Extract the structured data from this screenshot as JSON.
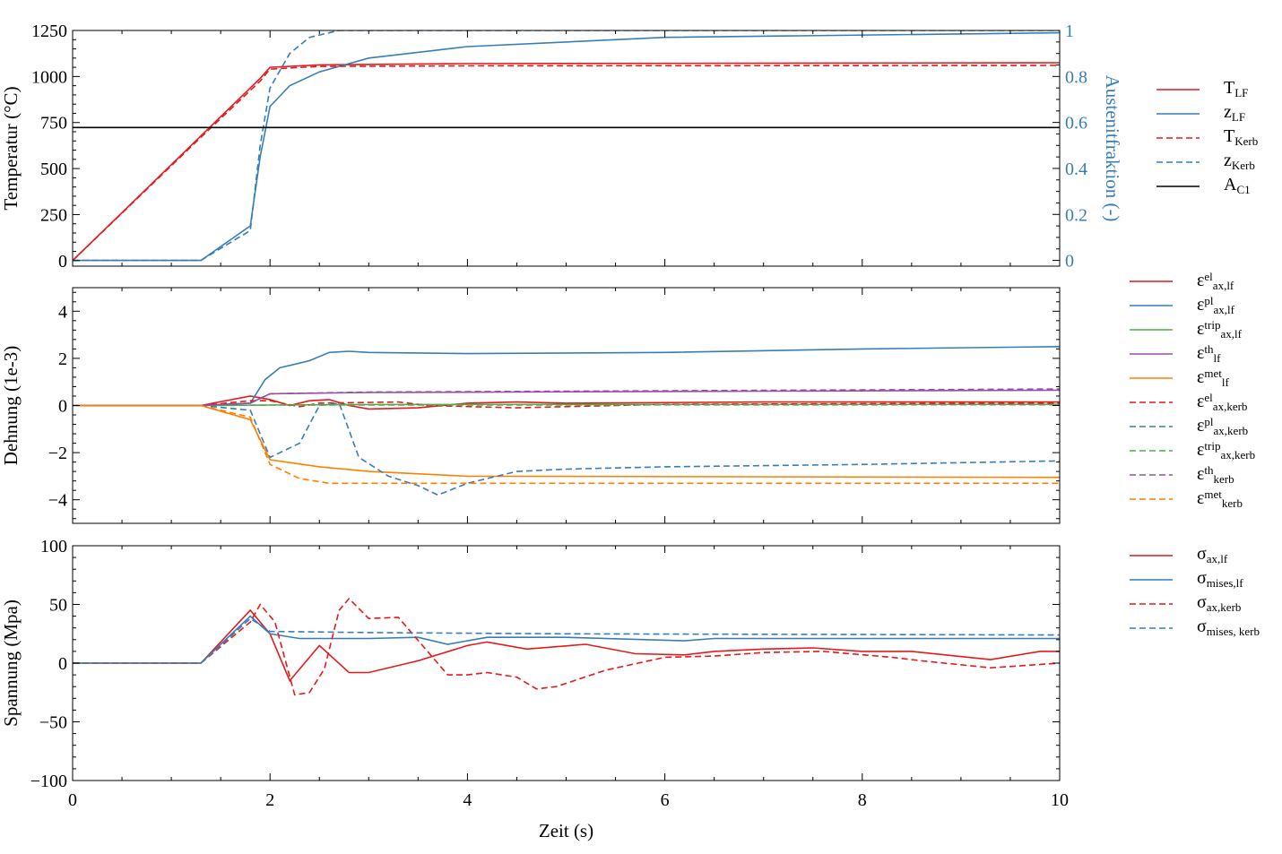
{
  "chart_data": [
    {
      "type": "line",
      "ylabel": "Temperatur (°C)",
      "y2label": "Austenitfraktion (-)",
      "xlim": [
        0,
        10
      ],
      "ylim": [
        -30,
        1250
      ],
      "y2lim": [
        -0.025,
        1
      ],
      "xticks": [
        "0",
        "2",
        "4",
        "6",
        "8",
        "10"
      ],
      "yticks": [
        "0",
        "250",
        "500",
        "750",
        "1000",
        "1250"
      ],
      "y2ticks": [
        "0",
        "0.2",
        "0.4",
        "0.6",
        "0.8",
        "1"
      ],
      "grid": false,
      "legend_placement": "right-outside",
      "series": [
        {
          "name": "T_LF",
          "label": {
            "b": "T",
            "sub": "LF",
            "sup": ""
          },
          "color": "#e41a1c",
          "dash": false,
          "axis": "left",
          "x": [
            0,
            1.3,
            1.9,
            2.0,
            2.5,
            4,
            10
          ],
          "y": [
            0,
            677,
            990,
            1050,
            1063,
            1070,
            1075
          ]
        },
        {
          "name": "z_LF",
          "label": {
            "b": "z",
            "sub": "LF",
            "sup": ""
          },
          "color": "#377eb8",
          "dash": false,
          "axis": "right",
          "x": [
            0,
            1.3,
            1.8,
            1.9,
            2.0,
            2.2,
            2.5,
            3,
            4,
            6,
            10
          ],
          "y": [
            0,
            0,
            0.15,
            0.45,
            0.67,
            0.76,
            0.82,
            0.88,
            0.93,
            0.97,
            0.99
          ]
        },
        {
          "name": "T_Kerb",
          "label": {
            "b": "T",
            "sub": "Kerb",
            "sup": ""
          },
          "color": "#e41a1c",
          "dash": true,
          "axis": "left",
          "x": [
            0,
            1.3,
            1.9,
            2.0,
            2.5,
            4,
            10
          ],
          "y": [
            0,
            670,
            975,
            1040,
            1055,
            1058,
            1060
          ]
        },
        {
          "name": "z_Kerb",
          "label": {
            "b": "z",
            "sub": "Kerb",
            "sup": ""
          },
          "color": "#377eb8",
          "dash": true,
          "axis": "right",
          "x": [
            0,
            1.3,
            1.8,
            1.9,
            2.0,
            2.2,
            2.4,
            2.7,
            10
          ],
          "y": [
            0,
            0,
            0.13,
            0.5,
            0.75,
            0.9,
            0.97,
            1.0,
            1.0
          ]
        },
        {
          "name": "A_C1",
          "label": {
            "b": "A",
            "sub": "C1",
            "sup": ""
          },
          "color": "#000000",
          "dash": false,
          "axis": "left",
          "x": [
            0,
            10
          ],
          "y": [
            723,
            723
          ]
        }
      ]
    },
    {
      "type": "line",
      "ylabel": "Dehnung (1e-3)",
      "xlim": [
        0,
        10
      ],
      "ylim": [
        -5,
        5
      ],
      "xticks": [
        "0",
        "2",
        "4",
        "6",
        "8",
        "10"
      ],
      "yticks": [
        "−4",
        "−2",
        "0",
        "2",
        "4"
      ],
      "ytick_values": [
        -4,
        -2,
        0,
        2,
        4
      ],
      "grid": false,
      "legend_placement": "right-outside",
      "series": [
        {
          "name": "eps_el_ax_lf",
          "label": {
            "b": "ε",
            "sub": "ax,lf",
            "sup": "el"
          },
          "color": "#e41a1c",
          "dash": false,
          "x": [
            0,
            1.3,
            1.8,
            2.0,
            2.2,
            2.4,
            2.6,
            2.8,
            3.0,
            3.5,
            4,
            4.5,
            5,
            7,
            10
          ],
          "y": [
            0,
            0,
            0.4,
            0.25,
            0,
            0.2,
            0.25,
            0,
            -0.15,
            -0.1,
            0.1,
            0.15,
            0.1,
            0.15,
            0.15
          ]
        },
        {
          "name": "eps_pl_ax_lf",
          "label": {
            "b": "ε",
            "sub": "ax,lf",
            "sup": "pl"
          },
          "color": "#377eb8",
          "dash": false,
          "x": [
            0,
            1.3,
            1.8,
            1.95,
            2.1,
            2.3,
            2.4,
            2.6,
            2.8,
            3,
            4,
            6,
            8,
            10
          ],
          "y": [
            0,
            0,
            0.1,
            1.1,
            1.6,
            1.8,
            1.9,
            2.25,
            2.3,
            2.25,
            2.2,
            2.25,
            2.4,
            2.5
          ]
        },
        {
          "name": "eps_trip_ax_lf",
          "label": {
            "b": "ε",
            "sub": "ax,lf",
            "sup": "trip"
          },
          "color": "#4daf4a",
          "dash": false,
          "x": [
            0,
            1.3,
            2,
            3,
            10
          ],
          "y": [
            0,
            0,
            0.02,
            0.04,
            0.05
          ]
        },
        {
          "name": "eps_th_lf",
          "label": {
            "b": "ε",
            "sub": "lf",
            "sup": "th"
          },
          "color": "#984ea3",
          "dash": false,
          "x": [
            0,
            1.3,
            1.8,
            2.0,
            3,
            10
          ],
          "y": [
            0,
            0,
            0.1,
            0.5,
            0.55,
            0.65
          ]
        },
        {
          "name": "eps_met_lf",
          "label": {
            "b": "ε",
            "sub": "lf",
            "sup": "met"
          },
          "color": "#ff7f00",
          "dash": false,
          "x": [
            0,
            1.3,
            1.8,
            2.0,
            2.5,
            3,
            4,
            10
          ],
          "y": [
            0,
            0,
            -0.6,
            -2.3,
            -2.6,
            -2.8,
            -3.0,
            -3.05
          ]
        },
        {
          "name": "eps_el_ax_kerb",
          "label": {
            "b": "ε",
            "sub": "ax,kerb",
            "sup": "el"
          },
          "color": "#e41a1c",
          "dash": true,
          "x": [
            0,
            1.3,
            1.8,
            2.0,
            2.3,
            2.5,
            3.3,
            3.6,
            4.5,
            6,
            10
          ],
          "y": [
            0,
            0,
            0.2,
            0.2,
            -0.05,
            0.1,
            0.15,
            0,
            -0.1,
            0.05,
            0.1
          ]
        },
        {
          "name": "eps_pl_ax_kerb",
          "label": {
            "b": "ε",
            "sub": "ax,kerb",
            "sup": "pl"
          },
          "color": "#377eb8",
          "dash": true,
          "x": [
            0,
            1.3,
            1.8,
            2.0,
            2.3,
            2.5,
            2.7,
            2.9,
            3.2,
            3.5,
            3.7,
            4.0,
            4.5,
            5,
            6,
            8,
            10
          ],
          "y": [
            0,
            0,
            -0.2,
            -2.2,
            -1.6,
            0,
            0.1,
            -2.2,
            -3.0,
            -3.4,
            -3.8,
            -3.3,
            -2.8,
            -2.7,
            -2.6,
            -2.5,
            -2.35
          ]
        },
        {
          "name": "eps_trip_ax_kerb",
          "label": {
            "b": "ε",
            "sub": "ax,kerb",
            "sup": "trip"
          },
          "color": "#4daf4a",
          "dash": true,
          "x": [
            0,
            1.3,
            2,
            10
          ],
          "y": [
            0,
            0,
            0.02,
            0.03
          ]
        },
        {
          "name": "eps_th_kerb",
          "label": {
            "b": "ε",
            "sub": "kerb",
            "sup": "th"
          },
          "color": "#984ea3",
          "dash": true,
          "x": [
            0,
            1.3,
            1.8,
            2.0,
            3,
            10
          ],
          "y": [
            0,
            0,
            0.1,
            0.5,
            0.57,
            0.7
          ]
        },
        {
          "name": "eps_met_kerb",
          "label": {
            "b": "ε",
            "sub": "kerb",
            "sup": "met"
          },
          "color": "#ff7f00",
          "dash": true,
          "x": [
            0,
            1.3,
            1.8,
            2.0,
            2.3,
            2.6,
            10
          ],
          "y": [
            0,
            0,
            -0.5,
            -2.5,
            -3.1,
            -3.3,
            -3.3
          ]
        }
      ]
    },
    {
      "type": "line",
      "ylabel": "Spannung (Mpa)",
      "xlabel": "Zeit (s)",
      "xlim": [
        0,
        10
      ],
      "ylim": [
        -100,
        100
      ],
      "xticks": [
        "0",
        "2",
        "4",
        "6",
        "8",
        "10"
      ],
      "yticks": [
        "−100",
        "−50",
        "0",
        "50",
        "100"
      ],
      "ytick_values": [
        -100,
        -50,
        0,
        50,
        100
      ],
      "grid": false,
      "legend_placement": "right-outside",
      "series": [
        {
          "name": "sigma_ax_lf",
          "label": {
            "b": "σ",
            "sub": "ax,lf",
            "sup": ""
          },
          "color": "#e41a1c",
          "dash": false,
          "x": [
            0,
            1.3,
            1.8,
            2.0,
            2.2,
            2.5,
            2.8,
            3.0,
            3.5,
            4.0,
            4.2,
            4.6,
            5.2,
            5.7,
            6.2,
            6.5,
            7.0,
            7.5,
            8.0,
            8.5,
            9.3,
            9.8,
            10
          ],
          "y": [
            0,
            0,
            45,
            25,
            -15,
            15,
            -8,
            -8,
            2,
            15,
            18,
            12,
            16,
            8,
            7,
            10,
            12,
            13,
            10,
            10,
            3,
            10,
            10
          ]
        },
        {
          "name": "sigma_mises_lf",
          "label": {
            "b": "σ",
            "sub": "mises,lf",
            "sup": ""
          },
          "color": "#377eb8",
          "dash": false,
          "x": [
            0,
            1.3,
            1.8,
            2.0,
            2.3,
            3.0,
            3.5,
            3.8,
            4.2,
            5.0,
            6.2,
            6.5,
            10
          ],
          "y": [
            0,
            0,
            40,
            25,
            21,
            21,
            22,
            16,
            22,
            22,
            19,
            21,
            21
          ]
        },
        {
          "name": "sigma_ax_kerb",
          "label": {
            "b": "σ",
            "sub": "ax,kerb",
            "sup": ""
          },
          "color": "#e41a1c",
          "dash": true,
          "x": [
            0,
            1.3,
            1.8,
            1.9,
            2.05,
            2.25,
            2.4,
            2.55,
            2.7,
            2.8,
            3.0,
            3.3,
            3.8,
            4.0,
            4.2,
            4.5,
            4.7,
            4.9,
            5.4,
            6.0,
            6.5,
            7.0,
            7.6,
            8.3,
            8.6,
            9.3,
            10
          ],
          "y": [
            0,
            0,
            35,
            50,
            35,
            -27,
            -25,
            -5,
            45,
            55,
            38,
            39,
            -10,
            -10,
            -8,
            -12,
            -22,
            -20,
            -6,
            5,
            6,
            9,
            10,
            5,
            2,
            -4,
            0
          ]
        },
        {
          "name": "sigma_mises_kerb",
          "label": {
            "b": "σ",
            "sub": "mises, kerb",
            "sup": ""
          },
          "color": "#377eb8",
          "dash": true,
          "x": [
            0,
            1.3,
            1.8,
            2.0,
            3,
            5,
            10
          ],
          "y": [
            0,
            0,
            38,
            27,
            26,
            25,
            24
          ]
        }
      ]
    }
  ]
}
